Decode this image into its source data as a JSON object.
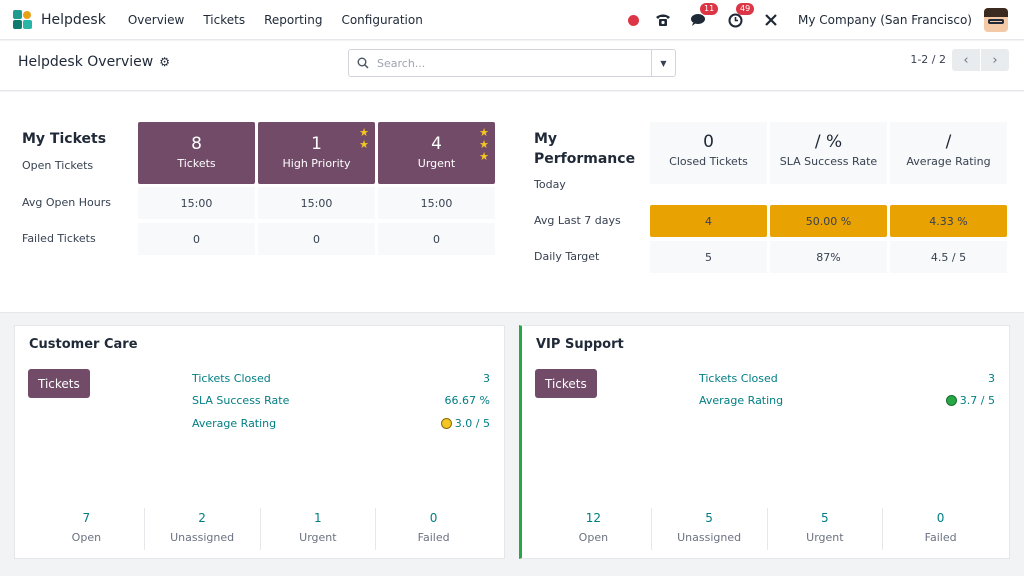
{
  "navbar": {
    "app_name": "Helpdesk",
    "menu": [
      "Overview",
      "Tickets",
      "Reporting",
      "Configuration"
    ],
    "chat_badge": "11",
    "activity_badge": "49",
    "company": "My Company (San Francisco)"
  },
  "control": {
    "title": "Helpdesk Overview",
    "search_placeholder": "Search...",
    "pager": "1-2 / 2"
  },
  "my_tickets": {
    "title": "My Tickets",
    "rows": [
      "Open Tickets",
      "Avg Open Hours",
      "Failed Tickets"
    ],
    "tiles": [
      {
        "num": "8",
        "label": "Tickets",
        "stars": 0
      },
      {
        "num": "1",
        "label": "High Priority",
        "stars": 2
      },
      {
        "num": "4",
        "label": "Urgent",
        "stars": 3
      }
    ],
    "avg_hours": [
      "15:00",
      "15:00",
      "15:00"
    ],
    "failed": [
      "0",
      "0",
      "0"
    ]
  },
  "performance": {
    "title": "My Performance",
    "rows": [
      "Today",
      "Avg Last 7 days",
      "Daily Target"
    ],
    "heads": [
      {
        "val": "0",
        "label": "Closed Tickets"
      },
      {
        "val": "/ %",
        "label": "SLA Success Rate"
      },
      {
        "val": "/",
        "label": "Average Rating"
      }
    ],
    "last7": [
      "4",
      "50.00 %",
      "4.33 %"
    ],
    "target": [
      "5",
      "87%",
      "4.5 / 5"
    ]
  },
  "teams": [
    {
      "title": "Customer Care",
      "button": "Tickets",
      "stats": [
        {
          "label": "Tickets Closed",
          "value": "3"
        },
        {
          "label": "SLA Success Rate",
          "value": "66.67 %"
        },
        {
          "label": "Average Rating",
          "value": "3.0 / 5"
        }
      ],
      "footer": [
        {
          "num": "7",
          "label": "Open"
        },
        {
          "num": "2",
          "label": "Unassigned"
        },
        {
          "num": "1",
          "label": "Urgent"
        },
        {
          "num": "0",
          "label": "Failed"
        }
      ]
    },
    {
      "title": "VIP Support",
      "button": "Tickets",
      "stats": [
        {
          "label": "Tickets Closed",
          "value": "3"
        },
        {
          "label": "Average Rating",
          "value": "3.7 / 5"
        }
      ],
      "footer": [
        {
          "num": "12",
          "label": "Open"
        },
        {
          "num": "5",
          "label": "Unassigned"
        },
        {
          "num": "5",
          "label": "Urgent"
        },
        {
          "num": "0",
          "label": "Failed"
        }
      ]
    }
  ],
  "colors": {
    "primary": "#714b67",
    "accent": "#e8a202",
    "link": "#017e84",
    "danger": "#dc3545"
  }
}
